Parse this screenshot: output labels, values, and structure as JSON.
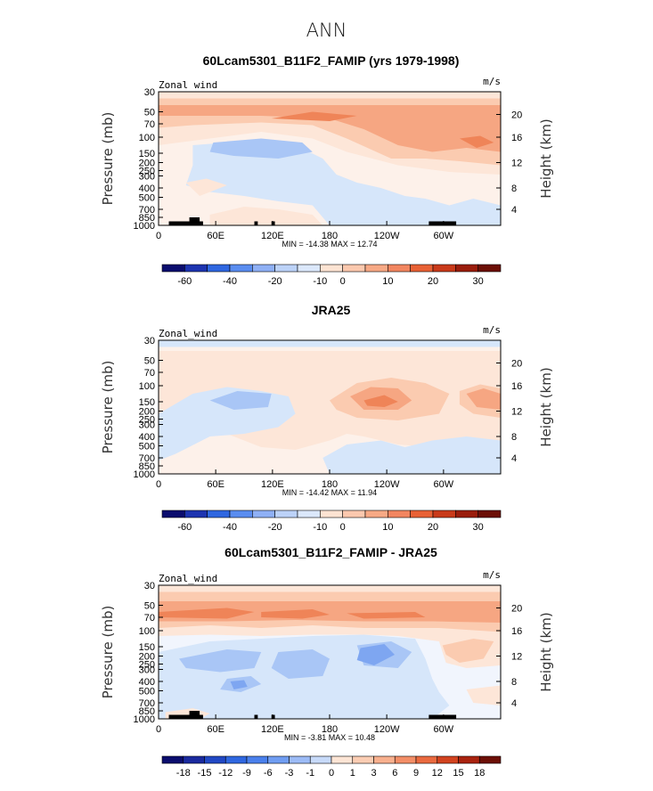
{
  "title": "ANN",
  "panels": [
    {
      "title": "60Lcam5301_B11F2_FAMIP (yrs 1979-1998)",
      "left_label": "Zonal wind",
      "right_label": "m/s",
      "min_max": "MIN = -14.38   MAX =  12.74",
      "colorbar_labels": [
        "-60",
        "-40",
        "-20",
        "-10",
        "0",
        "10",
        "20",
        "30"
      ],
      "colorbar_colors": [
        "#0b0d6e",
        "#1d34b0",
        "#2f67e0",
        "#5a8df0",
        "#8fb0f5",
        "#bcd2f8",
        "#dbe8fb",
        "#fde3d2",
        "#fbc8ae",
        "#f7a985",
        "#f28660",
        "#e86135",
        "#c93a1a",
        "#9a1d0c",
        "#6c0f06"
      ]
    },
    {
      "title": "JRA25",
      "left_label": "Zonal_wind",
      "right_label": "m/s",
      "min_max": "MIN = -14.42   MAX =  11.94",
      "colorbar_labels": [
        "-60",
        "-40",
        "-20",
        "-10",
        "0",
        "10",
        "20",
        "30"
      ],
      "colorbar_colors": [
        "#0b0d6e",
        "#1d34b0",
        "#2f67e0",
        "#5a8df0",
        "#8fb0f5",
        "#bcd2f8",
        "#dbe8fb",
        "#fde3d2",
        "#fbc8ae",
        "#f7a985",
        "#f28660",
        "#e86135",
        "#c93a1a",
        "#9a1d0c",
        "#6c0f06"
      ]
    },
    {
      "title": "60Lcam5301_B11F2_FAMIP - JRA25",
      "left_label": "Zonal_wind",
      "right_label": "m/s",
      "min_max": "MIN =  -3.81   MAX =  10.48",
      "colorbar_labels": [
        "-18",
        "-15",
        "-12",
        "-9",
        "-6",
        "-3",
        "-1",
        "0",
        "1",
        "3",
        "6",
        "9",
        "12",
        "15",
        "18"
      ],
      "colorbar_colors": [
        "#0b0d6e",
        "#1a2a9e",
        "#2148c4",
        "#2f67e0",
        "#4a80ec",
        "#709df2",
        "#9cbbf6",
        "#c7daf9",
        "#fde5d5",
        "#fbcdb3",
        "#f8b08e",
        "#f38e67",
        "#ea6a3f",
        "#d2431f",
        "#a9230f",
        "#6c0f06"
      ]
    }
  ],
  "chart_data": [
    {
      "type": "heatmap",
      "title": "60Lcam5301_B11F2_FAMIP (yrs 1979-1998)",
      "variable": "Zonal wind",
      "units": "m/s",
      "xlabel": "",
      "ylabel": "Pressure (mb)",
      "y2label": "Height (km)",
      "x_ticks": [
        "0",
        "60E",
        "120E",
        "180",
        "120W",
        "60W"
      ],
      "y_ticks": [
        "30",
        "50",
        "70",
        "100",
        "150",
        "200",
        "250",
        "300",
        "400",
        "500",
        "700",
        "850",
        "1000"
      ],
      "y2_ticks": [
        "20",
        "16",
        "12",
        "8",
        "4"
      ],
      "min": -14.38,
      "max": 12.74
    },
    {
      "type": "heatmap",
      "title": "JRA25",
      "variable": "Zonal_wind",
      "units": "m/s",
      "xlabel": "",
      "ylabel": "Pressure (mb)",
      "y2label": "Height (km)",
      "x_ticks": [
        "0",
        "60E",
        "120E",
        "180",
        "120W",
        "60W"
      ],
      "y_ticks": [
        "30",
        "50",
        "70",
        "100",
        "150",
        "200",
        "250",
        "300",
        "400",
        "500",
        "700",
        "850",
        "1000"
      ],
      "y2_ticks": [
        "20",
        "16",
        "12",
        "8",
        "4"
      ],
      "min": -14.42,
      "max": 11.94
    },
    {
      "type": "heatmap",
      "title": "60Lcam5301_B11F2_FAMIP - JRA25",
      "variable": "Zonal_wind",
      "units": "m/s",
      "xlabel": "",
      "ylabel": "Pressure (mb)",
      "y2label": "Height (km)",
      "x_ticks": [
        "0",
        "60E",
        "120E",
        "180",
        "120W",
        "60W"
      ],
      "y_ticks": [
        "30",
        "50",
        "70",
        "100",
        "150",
        "200",
        "250",
        "300",
        "400",
        "500",
        "700",
        "850",
        "1000"
      ],
      "y2_ticks": [
        "20",
        "16",
        "12",
        "8",
        "4"
      ],
      "min": -3.81,
      "max": 10.48
    }
  ]
}
